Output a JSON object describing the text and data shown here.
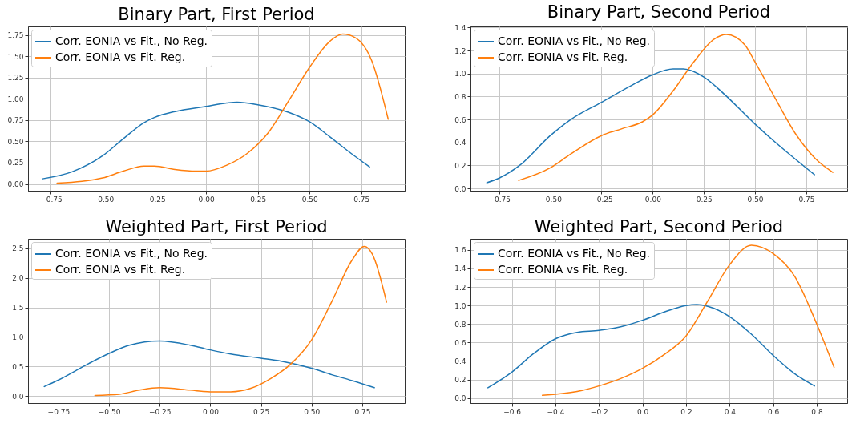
{
  "chart_data": [
    {
      "type": "line",
      "title": "Binary Part, First Period",
      "legend": "top left",
      "grid": true,
      "xlim": [
        -0.86,
        0.96
      ],
      "ylim": [
        -0.08,
        1.85
      ],
      "xticks": [
        {
          "value": -0.75,
          "label": "−0.75"
        },
        {
          "value": -0.5,
          "label": "−0.50"
        },
        {
          "value": -0.25,
          "label": "−0.25"
        },
        {
          "value": 0,
          "label": "0.00"
        },
        {
          "value": 0.25,
          "label": "0.25"
        },
        {
          "value": 0.5,
          "label": "0.50"
        },
        {
          "value": 0.75,
          "label": "0.75"
        }
      ],
      "yticks": [
        {
          "value": 0,
          "label": "0.00"
        },
        {
          "value": 0.25,
          "label": "0.25"
        },
        {
          "value": 0.5,
          "label": "0.50"
        },
        {
          "value": 0.75,
          "label": "0.75"
        },
        {
          "value": 1,
          "label": "1.00"
        },
        {
          "value": 1.25,
          "label": "1.25"
        },
        {
          "value": 1.5,
          "label": "1.50"
        },
        {
          "value": 1.75,
          "label": "1.75"
        }
      ],
      "series": [
        {
          "name": "Corr. EONIA vs Fit., No Reg.",
          "color": "#1f77b4",
          "x": [
            -0.79,
            -0.65,
            -0.5,
            -0.4,
            -0.3,
            -0.25,
            -0.15,
            0,
            0.1,
            0.15,
            0.25,
            0.4,
            0.5,
            0.6,
            0.7,
            0.79
          ],
          "values": [
            0.06,
            0.14,
            0.33,
            0.53,
            0.72,
            0.78,
            0.85,
            0.91,
            0.95,
            0.96,
            0.93,
            0.84,
            0.73,
            0.55,
            0.36,
            0.2
          ]
        },
        {
          "name": "Corr. EONIA vs Fit. Reg.",
          "color": "#ff7f0e",
          "x": [
            -0.72,
            -0.6,
            -0.5,
            -0.4,
            -0.3,
            -0.25,
            -0.15,
            -0.05,
            0,
            0.1,
            0.2,
            0.3,
            0.4,
            0.5,
            0.6,
            0.66,
            0.72,
            0.8,
            0.88
          ],
          "values": [
            0.01,
            0.03,
            0.07,
            0.15,
            0.21,
            0.21,
            0.17,
            0.15,
            0.15,
            0.22,
            0.36,
            0.6,
            0.98,
            1.37,
            1.68,
            1.76,
            1.72,
            1.45,
            0.76
          ]
        }
      ]
    },
    {
      "type": "line",
      "title": "Binary Part,  Second Period",
      "legend": "top left",
      "grid": true,
      "xlim": [
        -0.89,
        0.95
      ],
      "ylim": [
        -0.02,
        1.41
      ],
      "xticks": [
        {
          "value": -0.75,
          "label": "−0.75"
        },
        {
          "value": -0.5,
          "label": "−0.50"
        },
        {
          "value": -0.25,
          "label": "−0.25"
        },
        {
          "value": 0,
          "label": "0.00"
        },
        {
          "value": 0.25,
          "label": "0.25"
        },
        {
          "value": 0.5,
          "label": "0.50"
        },
        {
          "value": 0.75,
          "label": "0.75"
        }
      ],
      "yticks": [
        {
          "value": 0,
          "label": "0.0"
        },
        {
          "value": 0.2,
          "label": "0.2"
        },
        {
          "value": 0.4,
          "label": "0.4"
        },
        {
          "value": 0.6,
          "label": "0.6"
        },
        {
          "value": 0.8,
          "label": "0.8"
        },
        {
          "value": 1,
          "label": "1.0"
        },
        {
          "value": 1.2,
          "label": "1.2"
        },
        {
          "value": 1.4,
          "label": "1.4"
        }
      ],
      "series": [
        {
          "name": "Corr. EONIA vs Fit., No Reg.",
          "color": "#1f77b4",
          "x": [
            -0.81,
            -0.75,
            -0.65,
            -0.5,
            -0.4,
            -0.25,
            -0.1,
            0,
            0.1,
            0.15,
            0.25,
            0.35,
            0.5,
            0.6,
            0.7,
            0.79
          ],
          "values": [
            0.05,
            0.09,
            0.2,
            0.46,
            0.6,
            0.75,
            0.9,
            0.99,
            1.04,
            1.04,
            0.97,
            0.82,
            0.56,
            0.4,
            0.25,
            0.12
          ]
        },
        {
          "name": "Corr. EONIA vs Fit. Reg.",
          "color": "#ff7f0e",
          "x": [
            -0.655,
            -0.5,
            -0.4,
            -0.25,
            -0.15,
            -0.05,
            0,
            0.1,
            0.2,
            0.3,
            0.36,
            0.45,
            0.5,
            0.6,
            0.7,
            0.8,
            0.88
          ],
          "values": [
            0.07,
            0.18,
            0.3,
            0.46,
            0.52,
            0.58,
            0.64,
            0.85,
            1.1,
            1.3,
            1.34,
            1.25,
            1.1,
            0.78,
            0.47,
            0.25,
            0.14
          ]
        }
      ]
    },
    {
      "type": "line",
      "title": "Weighted Part, First Period",
      "legend": "top left",
      "grid": true,
      "xlim": [
        -0.9,
        0.96
      ],
      "ylim": [
        -0.12,
        2.66
      ],
      "xticks": [
        {
          "value": -0.75,
          "label": "−0.75"
        },
        {
          "value": -0.5,
          "label": "−0.50"
        },
        {
          "value": -0.25,
          "label": "−0.25"
        },
        {
          "value": 0,
          "label": "0.00"
        },
        {
          "value": 0.25,
          "label": "0.25"
        },
        {
          "value": 0.5,
          "label": "0.50"
        },
        {
          "value": 0.75,
          "label": "0.75"
        }
      ],
      "yticks": [
        {
          "value": 0,
          "label": "0.0"
        },
        {
          "value": 0.5,
          "label": "0.5"
        },
        {
          "value": 1,
          "label": "1.0"
        },
        {
          "value": 1.5,
          "label": "1.5"
        },
        {
          "value": 2,
          "label": "2.0"
        },
        {
          "value": 2.5,
          "label": "2.5"
        }
      ],
      "series": [
        {
          "name": "Corr. EONIA vs Fit., No Reg.",
          "color": "#1f77b4",
          "x": [
            -0.82,
            -0.75,
            -0.6,
            -0.5,
            -0.4,
            -0.25,
            -0.1,
            0,
            0.1,
            0.25,
            0.35,
            0.5,
            0.6,
            0.7,
            0.81
          ],
          "values": [
            0.16,
            0.27,
            0.55,
            0.72,
            0.86,
            0.93,
            0.86,
            0.78,
            0.71,
            0.64,
            0.59,
            0.47,
            0.36,
            0.26,
            0.14
          ]
        },
        {
          "name": "Corr. EONIA vs Fit. Reg.",
          "color": "#ff7f0e",
          "x": [
            -0.57,
            -0.45,
            -0.35,
            -0.25,
            -0.1,
            0,
            0.1,
            0.2,
            0.3,
            0.4,
            0.5,
            0.6,
            0.7,
            0.76,
            0.8,
            0.87
          ],
          "values": [
            0.01,
            0.03,
            0.1,
            0.14,
            0.1,
            0.07,
            0.07,
            0.13,
            0.3,
            0.55,
            0.95,
            1.6,
            2.3,
            2.53,
            2.4,
            1.59
          ]
        }
      ]
    },
    {
      "type": "line",
      "title": "Weighted Part, Second Period",
      "legend": "top left",
      "grid": true,
      "xlim": [
        -0.79,
        0.94
      ],
      "ylim": [
        -0.055,
        1.72
      ],
      "xticks": [
        {
          "value": -0.6,
          "label": "−0.6"
        },
        {
          "value": -0.4,
          "label": "−0.4"
        },
        {
          "value": -0.2,
          "label": "−0.2"
        },
        {
          "value": 0,
          "label": "0.0"
        },
        {
          "value": 0.2,
          "label": "0.2"
        },
        {
          "value": 0.4,
          "label": "0.4"
        },
        {
          "value": 0.6,
          "label": "0.6"
        },
        {
          "value": 0.8,
          "label": "0.8"
        }
      ],
      "yticks": [
        {
          "value": 0,
          "label": "0.0"
        },
        {
          "value": 0.2,
          "label": "0.2"
        },
        {
          "value": 0.4,
          "label": "0.4"
        },
        {
          "value": 0.6,
          "label": "0.6"
        },
        {
          "value": 0.8,
          "label": "0.8"
        },
        {
          "value": 1,
          "label": "1.0"
        },
        {
          "value": 1.2,
          "label": "1.2"
        },
        {
          "value": 1.4,
          "label": "1.4"
        },
        {
          "value": 1.6,
          "label": "1.6"
        }
      ],
      "series": [
        {
          "name": "Corr. EONIA vs Fit., No Reg.",
          "color": "#1f77b4",
          "x": [
            -0.71,
            -0.6,
            -0.5,
            -0.4,
            -0.3,
            -0.2,
            -0.1,
            0,
            0.1,
            0.2,
            0.25,
            0.3,
            0.4,
            0.5,
            0.6,
            0.7,
            0.79
          ],
          "values": [
            0.11,
            0.28,
            0.48,
            0.64,
            0.71,
            0.73,
            0.77,
            0.84,
            0.93,
            1.0,
            1.01,
            0.99,
            0.88,
            0.69,
            0.46,
            0.26,
            0.13
          ]
        },
        {
          "name": "Corr. EONIA vs Fit. Reg.",
          "color": "#ff7f0e",
          "x": [
            -0.46,
            -0.3,
            -0.2,
            -0.1,
            0,
            0.1,
            0.2,
            0.3,
            0.4,
            0.5,
            0.6,
            0.7,
            0.8,
            0.88
          ],
          "values": [
            0.03,
            0.07,
            0.13,
            0.21,
            0.32,
            0.47,
            0.67,
            1.05,
            1.44,
            1.65,
            1.56,
            1.31,
            0.8,
            0.33
          ]
        }
      ]
    }
  ]
}
